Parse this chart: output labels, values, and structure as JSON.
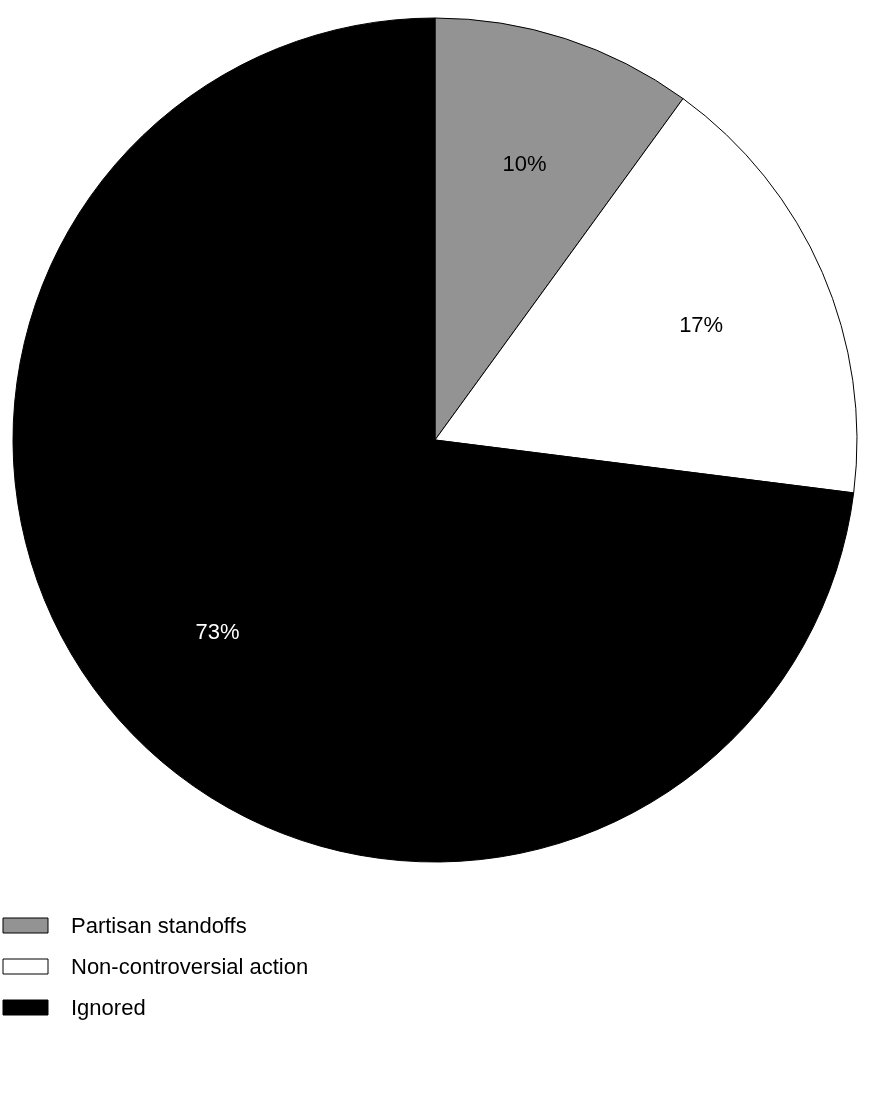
{
  "chart_data": {
    "type": "pie",
    "categories": [
      "Partisan standoffs",
      "Non-controversial action",
      "Ignored"
    ],
    "values": [
      10,
      17,
      73
    ],
    "colors": [
      "#939393",
      "#ffffff",
      "#000000"
    ],
    "value_labels": [
      "10%",
      "17%",
      "73%"
    ],
    "legend": "bottom"
  }
}
